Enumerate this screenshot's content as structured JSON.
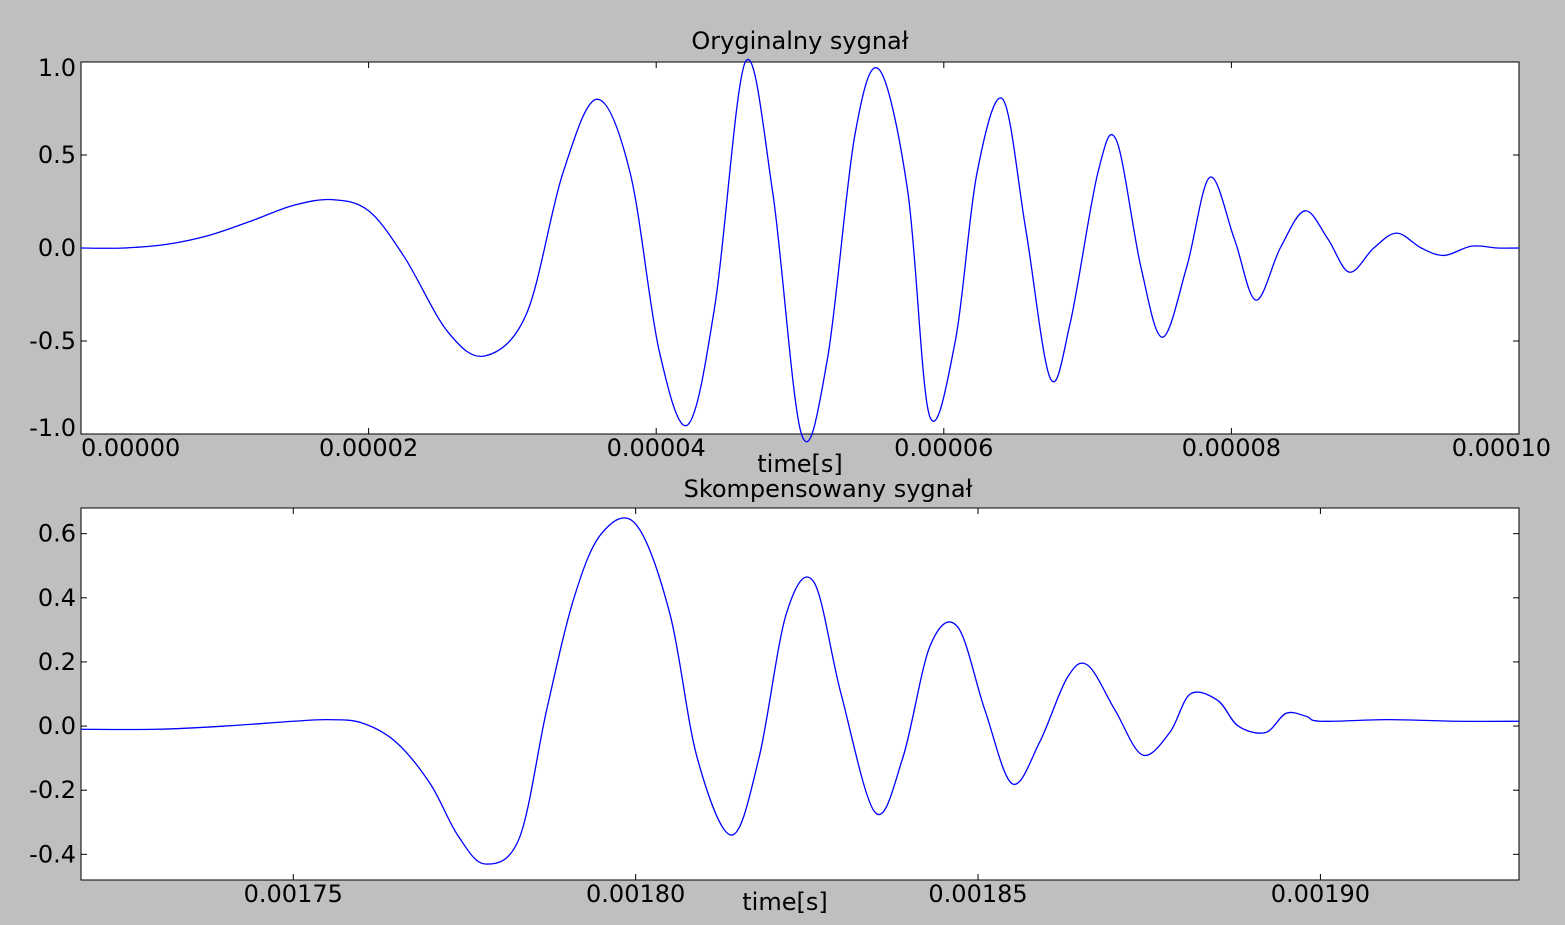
{
  "chart_data": [
    {
      "type": "line",
      "title": "Oryginalny sygnał",
      "xlabel": "time[s]",
      "ylabel": "",
      "xlim": [
        0.0,
        0.0001
      ],
      "ylim": [
        -1.0,
        1.0
      ],
      "grid": false,
      "line_color": "#0000ff",
      "xticks": [
        0.0,
        2e-05,
        4e-05,
        6e-05,
        8e-05,
        0.0001
      ],
      "xtick_labels": [
        "0.00000",
        "0.00002",
        "0.00004",
        "0.00006",
        "0.00008",
        "0.00010"
      ],
      "yticks": [
        1.0,
        0.5,
        0.0,
        -0.5,
        -1.0
      ],
      "ytick_labels": [
        "1.0",
        "0.5",
        "0.0",
        "-0.5",
        "-1.0"
      ],
      "series": [
        {
          "x": [
            0.0,
            3e-06,
            6e-06,
            9e-06,
            1.2e-05,
            1.48e-05,
            1.75e-05,
            2e-05,
            2.25e-05,
            2.55e-05,
            2.81e-05,
            3.1e-05,
            3.35e-05,
            3.59e-05,
            3.82e-05,
            4.02e-05,
            4.22e-05,
            4.41e-05,
            4.62e-05,
            4.81e-05,
            5.01e-05,
            5.19e-05,
            5.38e-05,
            5.55e-05,
            5.75e-05,
            5.9e-05,
            6.08e-05,
            6.23e-05,
            6.41e-05,
            6.57e-05,
            6.74e-05,
            6.88e-05,
            7.07e-05,
            7.2e-05,
            7.37e-05,
            7.52e-05,
            7.69e-05,
            7.85e-05,
            8.02e-05,
            8.17e-05,
            8.34e-05,
            8.51e-05,
            8.67e-05,
            8.82e-05,
            8.99e-05,
            9.15e-05,
            9.32e-05,
            9.48e-05,
            9.67e-05,
            9.85e-05,
            0.0001
          ],
          "y": [
            0.0,
            0.0,
            0.02,
            0.07,
            0.15,
            0.23,
            0.26,
            0.2,
            -0.05,
            -0.45,
            -0.58,
            -0.35,
            0.4,
            0.8,
            0.4,
            -0.55,
            -0.95,
            -0.3,
            1.0,
            0.3,
            -1.0,
            -0.6,
            0.6,
            0.96,
            0.3,
            -0.9,
            -0.5,
            0.4,
            0.8,
            0.1,
            -0.7,
            -0.4,
            0.4,
            0.58,
            -0.1,
            -0.48,
            -0.1,
            0.38,
            0.05,
            -0.28,
            0.0,
            0.2,
            0.05,
            -0.13,
            0.0,
            0.08,
            0.0,
            -0.04,
            0.01,
            0.0,
            0.0
          ]
        }
      ]
    },
    {
      "type": "line",
      "title": "Skompensowany sygnał",
      "xlabel": "time[s]",
      "ylabel": "",
      "xlim": [
        0.001719,
        0.001929
      ],
      "ylim": [
        -0.48,
        0.68
      ],
      "grid": false,
      "line_color": "#0000ff",
      "xticks": [
        0.00175,
        0.0018,
        0.00185,
        0.0019
      ],
      "xtick_labels": [
        "0.00175",
        "0.00180",
        "0.00185",
        "0.00190"
      ],
      "yticks": [
        0.6,
        0.4,
        0.2,
        0.0,
        -0.2,
        -0.4
      ],
      "ytick_labels": [
        "0.6",
        "0.4",
        "0.2",
        "0.0",
        "-0.2",
        "-0.4"
      ],
      "series": [
        {
          "x": [
            0.001719,
            0.00173,
            0.00174,
            0.00175,
            0.001755,
            0.00176,
            0.001765,
            0.00177,
            0.001774,
            0.001778,
            0.001783,
            0.001787,
            0.001791,
            0.001795,
            0.0018,
            0.001805,
            0.001809,
            0.001814,
            0.001818,
            0.001822,
            0.001826,
            0.00183,
            0.001835,
            0.001839,
            0.001843,
            0.001847,
            0.001851,
            0.001855,
            0.001859,
            0.001863,
            0.001866,
            0.00187,
            0.001874,
            0.001878,
            0.001881,
            0.001885,
            0.001888,
            0.001892,
            0.001895,
            0.001898,
            0.0019,
            0.00191,
            0.00192,
            0.001929
          ],
          "y": [
            -0.01,
            -0.01,
            0.0,
            0.015,
            0.02,
            0.01,
            -0.05,
            -0.18,
            -0.34,
            -0.43,
            -0.35,
            0.05,
            0.4,
            0.6,
            0.63,
            0.35,
            -0.1,
            -0.34,
            -0.1,
            0.35,
            0.45,
            0.1,
            -0.27,
            -0.1,
            0.25,
            0.31,
            0.05,
            -0.18,
            -0.05,
            0.15,
            0.19,
            0.05,
            -0.09,
            -0.02,
            0.1,
            0.08,
            0.0,
            -0.02,
            0.04,
            0.03,
            0.015,
            0.02,
            0.015,
            0.015
          ]
        }
      ]
    }
  ]
}
